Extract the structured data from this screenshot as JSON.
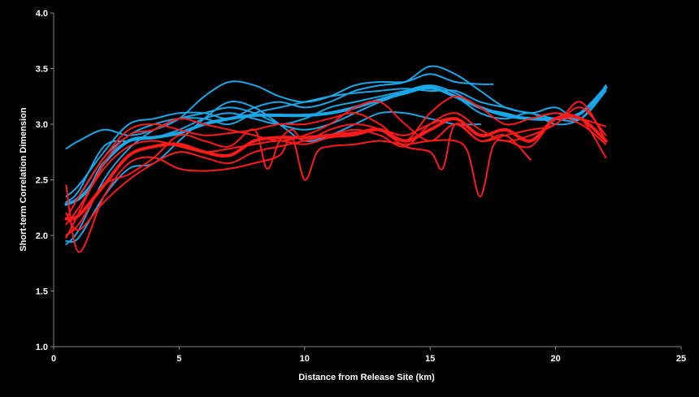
{
  "chart_data": {
    "type": "line",
    "title": "",
    "xlabel": "Distance  from Release Site (km)",
    "ylabel": "Short-term Correlation Dimension",
    "xlim": [
      0,
      25
    ],
    "ylim": [
      1.0,
      4.0
    ],
    "xticks": [
      "0",
      "5",
      "10",
      "15",
      "20",
      "25"
    ],
    "yticks": [
      "1.0",
      "1.5",
      "2.0",
      "2.5",
      "3.0",
      "3.5",
      "4.0"
    ],
    "grid": false,
    "legend": "none",
    "colors": {
      "blue": "#1aa7e8",
      "red": "#ff1a1a",
      "background": "#000000",
      "axis": "#888888"
    },
    "series": [
      {
        "color": "blue",
        "width": 4,
        "x": [
          0.5,
          1,
          1.5,
          2,
          3,
          4,
          5,
          6,
          7,
          8,
          9,
          10,
          11,
          12,
          13,
          14,
          15,
          16,
          17,
          18,
          19,
          20,
          21,
          22
        ],
        "y": [
          2.28,
          2.33,
          2.45,
          2.65,
          2.85,
          2.88,
          2.92,
          3.0,
          3.05,
          3.08,
          3.08,
          3.08,
          3.1,
          3.15,
          3.22,
          3.28,
          3.33,
          3.25,
          3.15,
          3.08,
          3.05,
          3.05,
          3.1,
          3.33
        ]
      },
      {
        "color": "blue",
        "width": 2,
        "x": [
          0.5,
          1,
          2,
          3,
          4,
          5,
          6,
          7,
          8,
          9,
          10,
          11,
          12,
          13,
          14,
          15,
          16,
          17,
          17.5
        ],
        "y": [
          2.78,
          2.85,
          2.95,
          2.9,
          2.95,
          3.05,
          3.25,
          3.38,
          3.35,
          3.25,
          3.2,
          3.25,
          3.35,
          3.38,
          3.38,
          3.45,
          3.38,
          3.36,
          3.36
        ]
      },
      {
        "color": "blue",
        "width": 2,
        "x": [
          0.5,
          1,
          2,
          3,
          4,
          5,
          6,
          7,
          8,
          9,
          10,
          11,
          12,
          13,
          14,
          15,
          16,
          17,
          18,
          19,
          20,
          21,
          22
        ],
        "y": [
          2.35,
          2.45,
          2.75,
          3.0,
          3.05,
          3.1,
          3.1,
          3.05,
          3.15,
          3.2,
          3.15,
          3.2,
          3.3,
          3.35,
          3.38,
          3.52,
          3.45,
          3.3,
          3.15,
          3.1,
          3.05,
          3.05,
          3.35
        ]
      },
      {
        "color": "blue",
        "width": 2,
        "x": [
          0.5,
          1,
          2,
          3,
          4,
          5,
          6,
          7,
          8,
          9,
          10,
          11,
          12,
          13,
          14,
          15,
          16,
          17,
          18,
          19,
          20,
          21,
          22
        ],
        "y": [
          2.3,
          2.4,
          2.8,
          2.85,
          2.88,
          2.95,
          3.05,
          3.1,
          3.05,
          3.0,
          3.05,
          3.15,
          3.2,
          3.25,
          3.3,
          3.35,
          3.28,
          3.15,
          3.1,
          3.05,
          3.1,
          3.05,
          3.3
        ]
      },
      {
        "color": "blue",
        "width": 2,
        "x": [
          0.5,
          1,
          2,
          3,
          4,
          5,
          6,
          7,
          8,
          9,
          10,
          11,
          12,
          13,
          14,
          15,
          16,
          17,
          18,
          19,
          20,
          21,
          22
        ],
        "y": [
          1.92,
          2.05,
          2.5,
          2.78,
          2.95,
          3.05,
          3.1,
          3.15,
          3.1,
          3.0,
          2.95,
          3.0,
          3.1,
          3.2,
          3.28,
          3.32,
          3.25,
          3.1,
          3.05,
          3.1,
          3.0,
          3.05,
          3.3
        ]
      },
      {
        "color": "blue",
        "width": 2,
        "x": [
          0.5,
          1,
          2,
          3,
          4,
          5,
          6,
          7,
          8,
          9,
          10,
          11,
          12,
          13,
          14,
          15,
          16,
          17
        ],
        "y": [
          1.95,
          1.98,
          2.35,
          2.6,
          2.65,
          2.85,
          3.05,
          3.2,
          3.15,
          3.0,
          2.85,
          2.9,
          3.0,
          3.1,
          3.1,
          3.05,
          3.0,
          3.0
        ]
      },
      {
        "color": "blue",
        "width": 2,
        "x": [
          0.5,
          1,
          2,
          3,
          4,
          5,
          6,
          7,
          8,
          9,
          10,
          11,
          12,
          13,
          14,
          15,
          16,
          17,
          18,
          19,
          20,
          21,
          22
        ],
        "y": [
          2.3,
          2.35,
          2.7,
          2.9,
          3.0,
          3.05,
          3.05,
          3.0,
          3.1,
          3.15,
          3.2,
          3.25,
          3.28,
          3.3,
          3.32,
          3.3,
          3.3,
          3.2,
          3.15,
          3.1,
          3.15,
          3.05,
          3.35
        ]
      },
      {
        "color": "red",
        "width": 4,
        "x": [
          0.5,
          1,
          2,
          3,
          4,
          5,
          6,
          7,
          8,
          9,
          10,
          11,
          12,
          13,
          14,
          15,
          16,
          17,
          18,
          19,
          20,
          21,
          22
        ],
        "y": [
          2.15,
          2.18,
          2.45,
          2.72,
          2.8,
          2.82,
          2.75,
          2.72,
          2.85,
          2.88,
          2.88,
          2.9,
          2.92,
          2.95,
          2.85,
          2.95,
          3.05,
          2.9,
          2.95,
          2.85,
          3.05,
          3.05,
          2.85
        ]
      },
      {
        "color": "red",
        "width": 2,
        "x": [
          0.5,
          1,
          2,
          3,
          4,
          5,
          6,
          7,
          8,
          9,
          9.5,
          10,
          10.5,
          11,
          12,
          13,
          14,
          15,
          16,
          16.5,
          17,
          17.5,
          18,
          19,
          20,
          21,
          22
        ],
        "y": [
          2.45,
          1.85,
          2.35,
          2.65,
          2.7,
          2.6,
          2.58,
          2.6,
          2.65,
          2.72,
          2.88,
          2.5,
          2.75,
          2.8,
          2.82,
          2.85,
          2.82,
          2.85,
          2.85,
          2.75,
          2.35,
          2.8,
          2.85,
          2.8,
          3.05,
          3.05,
          2.7
        ]
      },
      {
        "color": "red",
        "width": 2,
        "x": [
          0.5,
          1,
          2,
          3,
          4,
          5,
          6,
          7,
          8,
          8.5,
          9,
          9.5,
          10,
          11,
          12,
          13,
          14,
          15,
          15.5,
          16,
          17,
          18,
          19
        ],
        "y": [
          2.0,
          2.1,
          2.45,
          2.55,
          2.7,
          2.9,
          2.85,
          2.8,
          2.95,
          2.6,
          2.85,
          2.95,
          2.85,
          2.95,
          3.0,
          2.95,
          2.8,
          2.75,
          2.6,
          3.0,
          2.85,
          2.9,
          2.68
        ]
      },
      {
        "color": "red",
        "width": 2,
        "x": [
          0.5,
          1,
          2,
          3,
          4,
          5,
          6,
          7,
          8,
          9,
          10,
          11,
          12,
          13,
          14,
          15,
          16,
          17,
          18,
          19,
          20,
          21,
          22
        ],
        "y": [
          2.15,
          2.35,
          2.7,
          2.95,
          3.0,
          2.95,
          2.9,
          2.92,
          2.95,
          3.0,
          3.0,
          3.05,
          3.1,
          3.0,
          2.85,
          3.1,
          3.25,
          3.15,
          3.0,
          3.05,
          3.1,
          3.05,
          2.98
        ]
      },
      {
        "color": "red",
        "width": 2,
        "x": [
          0.5,
          1,
          2,
          3,
          4,
          5,
          6,
          7,
          8,
          9,
          10,
          11,
          12,
          13,
          14,
          15,
          16,
          17,
          18,
          19,
          20,
          21,
          22
        ],
        "y": [
          1.98,
          2.2,
          2.65,
          2.9,
          2.95,
          3.05,
          3.0,
          2.95,
          2.9,
          2.85,
          2.9,
          3.0,
          3.15,
          3.2,
          3.0,
          2.85,
          3.0,
          2.85,
          2.9,
          2.95,
          3.0,
          3.2,
          2.85
        ]
      },
      {
        "color": "red",
        "width": 2,
        "x": [
          0.5,
          1,
          2,
          3,
          4,
          5,
          6,
          7,
          8,
          9,
          10,
          11,
          12,
          13,
          14,
          15,
          16,
          17,
          18,
          19,
          20,
          21,
          22
        ],
        "y": [
          2.2,
          2.05,
          2.3,
          2.5,
          2.65,
          2.75,
          2.7,
          2.65,
          2.75,
          2.8,
          2.85,
          2.9,
          2.95,
          2.9,
          2.8,
          3.0,
          3.1,
          2.95,
          2.85,
          2.9,
          3.0,
          3.15,
          2.9
        ]
      },
      {
        "color": "red",
        "width": 2,
        "x": [
          0.5,
          1,
          2,
          3,
          4,
          5,
          6,
          7,
          8,
          9,
          10,
          11,
          12,
          13,
          14,
          15,
          16,
          17,
          18,
          19,
          20,
          21,
          22
        ],
        "y": [
          2.1,
          2.25,
          2.6,
          2.8,
          2.85,
          2.8,
          2.75,
          2.78,
          2.82,
          2.85,
          2.82,
          2.88,
          2.9,
          2.95,
          2.9,
          3.0,
          3.05,
          2.9,
          2.95,
          2.85,
          3.05,
          3.0,
          2.82
        ]
      }
    ]
  }
}
